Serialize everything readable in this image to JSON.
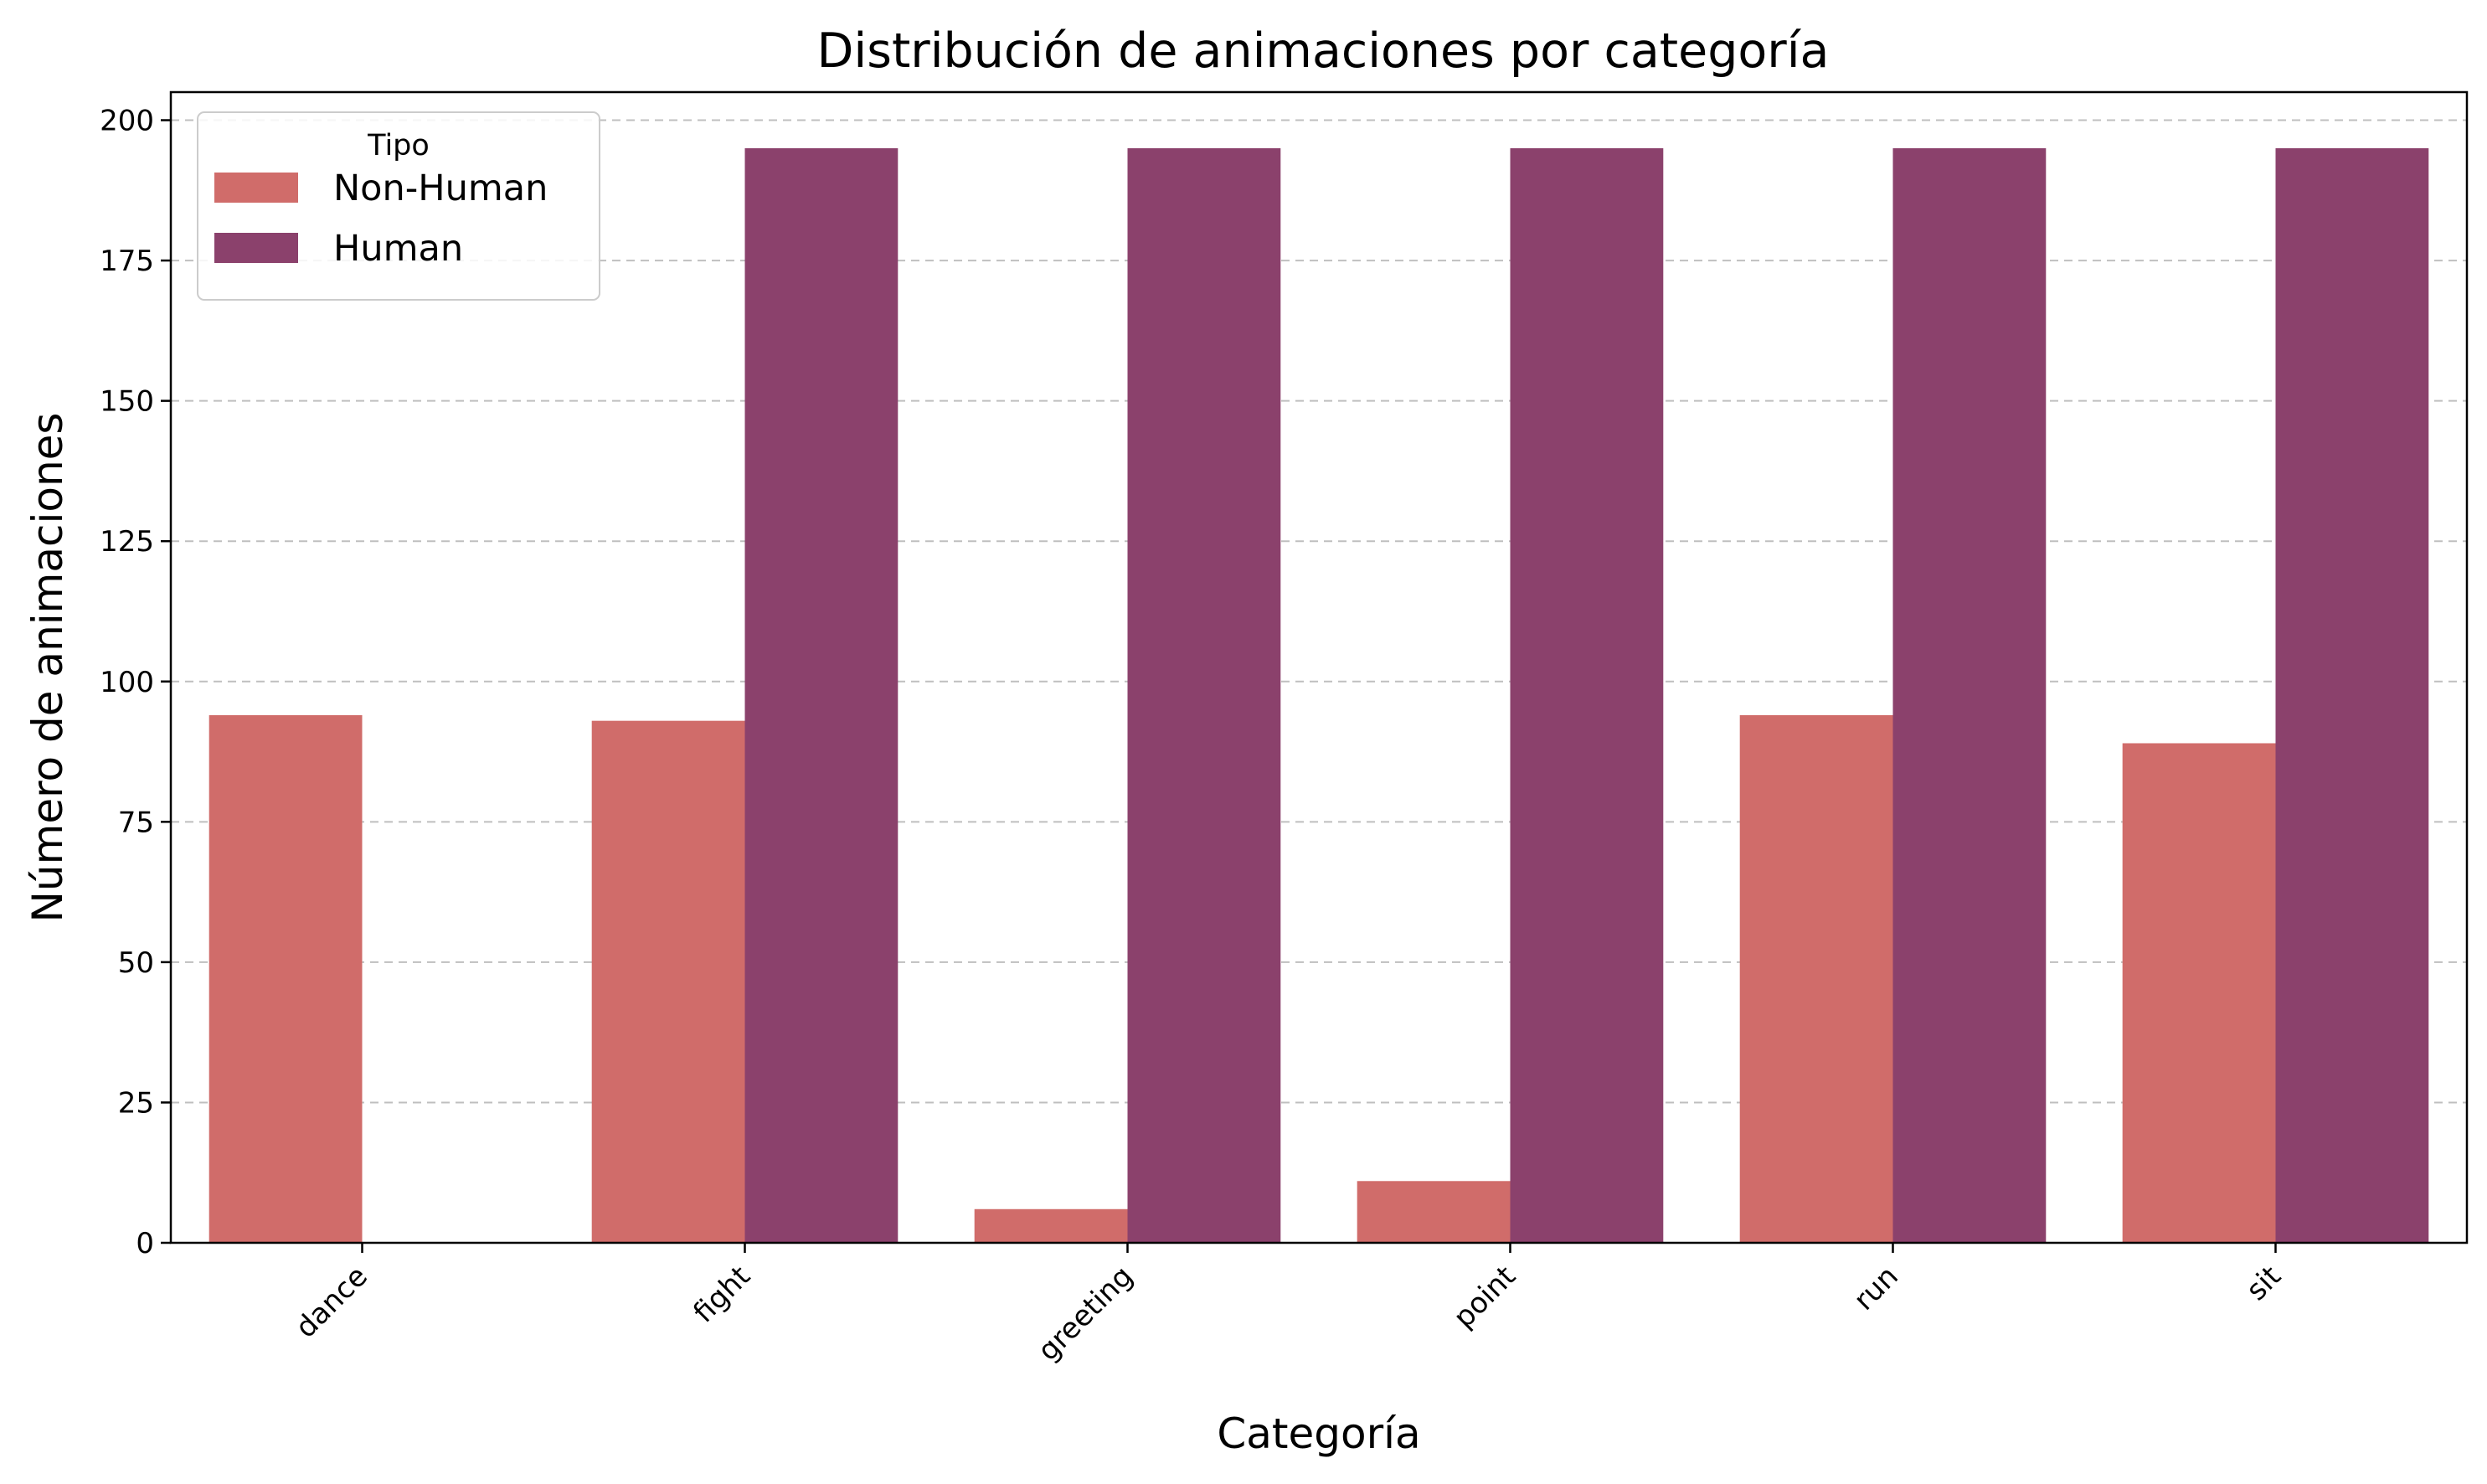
{
  "chart_data": {
    "type": "bar",
    "title": "Distribución de animaciones por categoría",
    "xlabel": "Categoría",
    "ylabel": "Número de animaciones",
    "categories": [
      "dance",
      "fight",
      "greeting",
      "point",
      "run",
      "sit"
    ],
    "series": [
      {
        "name": "Non-Human",
        "color": "#d06c6a",
        "values": [
          94,
          93,
          6,
          11,
          94,
          89
        ]
      },
      {
        "name": "Human",
        "color": "#8b416c",
        "values": [
          0,
          195,
          195,
          195,
          195,
          195
        ]
      }
    ],
    "ylim": [
      0,
      205
    ],
    "yticks": [
      0,
      25,
      50,
      75,
      100,
      125,
      150,
      175,
      200
    ],
    "grid": "y-dashed",
    "legend": {
      "title": "Tipo",
      "placement": "top-left"
    },
    "xtick_rotation": -45
  }
}
